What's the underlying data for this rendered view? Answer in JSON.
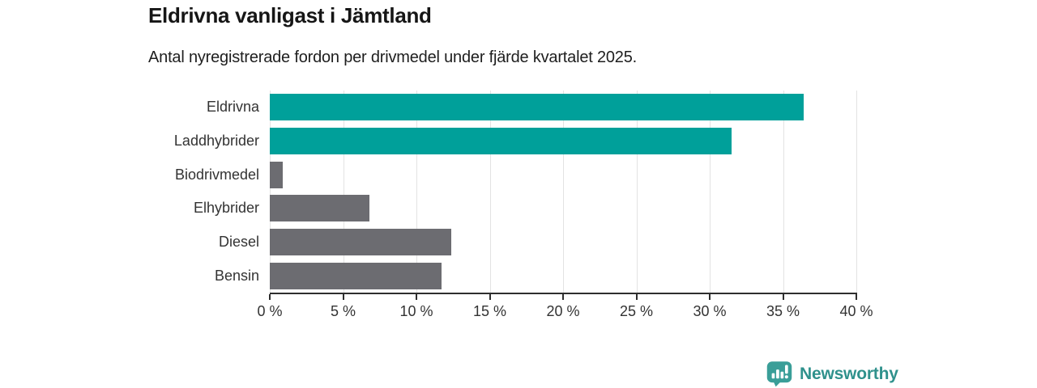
{
  "header": {
    "title": "Eldrivna vanligast i Jämtland",
    "subtitle": "Antal nyregistrerade fordon per drivmedel under fjärde kvartalet 2025."
  },
  "chart_data": {
    "type": "bar",
    "orientation": "horizontal",
    "title": "Eldrivna vanligast i Jämtland",
    "subtitle": "Antal nyregistrerade fordon per drivmedel under fjärde kvartalet 2025.",
    "categories": [
      "Eldrivna",
      "Laddhybrider",
      "Biodrivmedel",
      "Elhybrider",
      "Diesel",
      "Bensin"
    ],
    "values": [
      36.4,
      31.5,
      0.9,
      6.8,
      12.4,
      11.7
    ],
    "unit": "%",
    "xlim": [
      0,
      40
    ],
    "x_tick_step": 5,
    "x_tick_labels": [
      "0 %",
      "5 %",
      "10 %",
      "15 %",
      "20 %",
      "25 %",
      "30 %",
      "35 %",
      "40 %"
    ],
    "grid": "vertical",
    "legend": "none",
    "bar_colors": [
      "#00a09a",
      "#00a09a",
      "#6c6c71",
      "#6c6c71",
      "#6c6c71",
      "#6c6c71"
    ],
    "highlight_color": "#00a09a",
    "default_color": "#6c6c71"
  },
  "branding": {
    "logo_text": "Newsworthy",
    "logo_icon": "bar-chart-bubble-icon",
    "logo_icon_color": "#3a9e98",
    "logo_text_color": "#2f918c"
  }
}
